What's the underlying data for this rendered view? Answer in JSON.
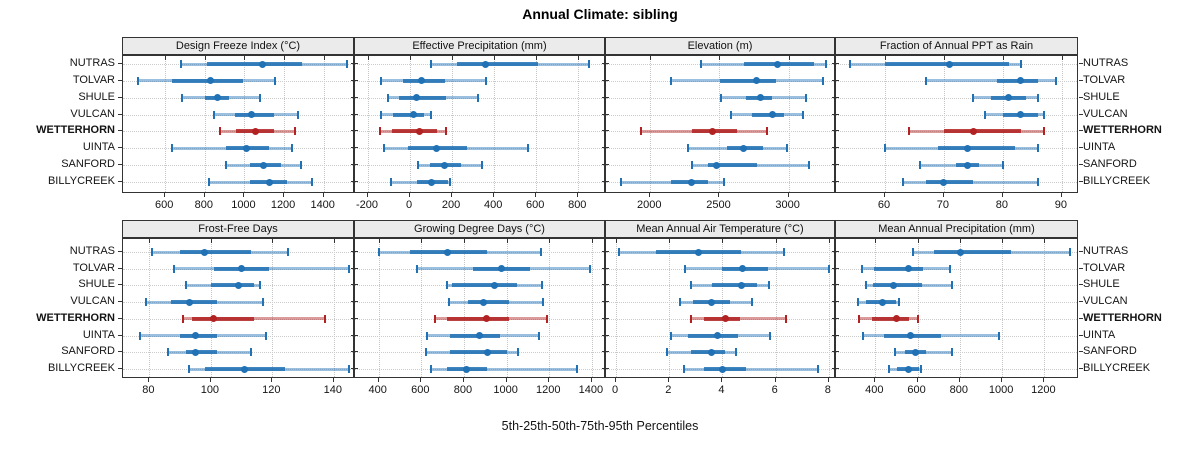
{
  "title": "Annual Climate: sibling",
  "footer": "5th-25th-50th-75th-95th Percentiles",
  "categories": [
    "NUTRAS",
    "TOLVAR",
    "SHULE",
    "VULCAN",
    "WETTERHORN",
    "UINTA",
    "SANFORD",
    "BILLYCREEK"
  ],
  "highlight": "WETTERHORN",
  "percentiles": [
    5,
    25,
    50,
    75,
    95
  ],
  "colors": {
    "blue": "#2171b5",
    "red": "#b22222",
    "grid": "#c6c6c6",
    "strip_bg": "#ebebeb",
    "border": "#333333"
  },
  "chart_data": [
    {
      "type": "errorbar-dotplot",
      "title": "Design Freeze Index (°C)",
      "row": 0,
      "col": 0,
      "xlim": [
        387,
        1558
      ],
      "ticks": [
        600,
        800,
        1000,
        1200,
        1400
      ],
      "grid": true,
      "series": [
        {
          "name": "NUTRAS",
          "values": [
            680,
            810,
            1090,
            1290,
            1520
          ]
        },
        {
          "name": "TOLVAR",
          "values": [
            465,
            635,
            830,
            995,
            1155
          ]
        },
        {
          "name": "SHULE",
          "values": [
            685,
            800,
            865,
            920,
            1080
          ]
        },
        {
          "name": "VULCAN",
          "values": [
            845,
            950,
            1035,
            1150,
            1270
          ]
        },
        {
          "name": "WETTERHORN",
          "values": [
            875,
            955,
            1055,
            1150,
            1255
          ]
        },
        {
          "name": "UINTA",
          "values": [
            635,
            905,
            1010,
            1125,
            1240
          ]
        },
        {
          "name": "SANFORD",
          "values": [
            905,
            1030,
            1095,
            1185,
            1285
          ]
        },
        {
          "name": "BILLYCREEK",
          "values": [
            820,
            1030,
            1125,
            1215,
            1340
          ]
        }
      ]
    },
    {
      "type": "errorbar-dotplot",
      "title": "Effective Precipitation (mm)",
      "row": 0,
      "col": 1,
      "xlim": [
        -262,
        932
      ],
      "ticks": [
        -200,
        0,
        200,
        400,
        600,
        800
      ],
      "grid": true,
      "series": [
        {
          "name": "NUTRAS",
          "values": [
            100,
            225,
            360,
            610,
            850
          ]
        },
        {
          "name": "TOLVAR",
          "values": [
            -140,
            -35,
            55,
            165,
            360
          ]
        },
        {
          "name": "SHULE",
          "values": [
            -105,
            -55,
            30,
            170,
            325
          ]
        },
        {
          "name": "VULCAN",
          "values": [
            -140,
            -80,
            15,
            65,
            100
          ]
        },
        {
          "name": "WETTERHORN",
          "values": [
            -145,
            -85,
            45,
            130,
            170
          ]
        },
        {
          "name": "UINTA",
          "values": [
            -125,
            -10,
            125,
            270,
            560
          ]
        },
        {
          "name": "SANFORD",
          "values": [
            40,
            95,
            165,
            240,
            340
          ]
        },
        {
          "name": "BILLYCREEK",
          "values": [
            -90,
            35,
            100,
            180,
            190
          ]
        }
      ]
    },
    {
      "type": "errorbar-dotplot",
      "title": "Elevation (m)",
      "row": 0,
      "col": 2,
      "xlim": [
        1680,
        3342
      ],
      "ticks": [
        2000,
        2500,
        3000
      ],
      "grid": true,
      "series": [
        {
          "name": "NUTRAS",
          "values": [
            2365,
            2675,
            2920,
            3180,
            3270
          ]
        },
        {
          "name": "TOLVAR",
          "values": [
            2150,
            2505,
            2765,
            2910,
            3250
          ]
        },
        {
          "name": "SHULE",
          "values": [
            2510,
            2690,
            2800,
            2880,
            3125
          ]
        },
        {
          "name": "VULCAN",
          "values": [
            2580,
            2735,
            2880,
            2965,
            3100
          ]
        },
        {
          "name": "WETTERHORN",
          "values": [
            1930,
            2300,
            2450,
            2630,
            2840
          ]
        },
        {
          "name": "UINTA",
          "values": [
            2270,
            2555,
            2675,
            2815,
            2990
          ]
        },
        {
          "name": "SANFORD",
          "values": [
            2305,
            2415,
            2480,
            2770,
            3150
          ]
        },
        {
          "name": "BILLYCREEK",
          "values": [
            1785,
            2150,
            2295,
            2420,
            2530
          ]
        }
      ]
    },
    {
      "type": "errorbar-dotplot",
      "title": "Fraction of Annual PPT as Rain",
      "row": 0,
      "col": 3,
      "xlim": [
        51.7,
        92.9
      ],
      "ticks": [
        60,
        70,
        80,
        90
      ],
      "grid": true,
      "series": [
        {
          "name": "NUTRAS",
          "values": [
            54,
            60,
            71,
            81,
            83
          ]
        },
        {
          "name": "TOLVAR",
          "values": [
            67,
            79,
            83,
            86,
            89
          ]
        },
        {
          "name": "SHULE",
          "values": [
            75,
            78,
            81,
            84,
            86
          ]
        },
        {
          "name": "VULCAN",
          "values": [
            77,
            80,
            83,
            86,
            87
          ]
        },
        {
          "name": "WETTERHORN",
          "values": [
            64,
            70,
            75,
            83,
            87
          ]
        },
        {
          "name": "UINTA",
          "values": [
            60,
            69,
            74,
            82,
            86
          ]
        },
        {
          "name": "SANFORD",
          "values": [
            66,
            72,
            74,
            76,
            80
          ]
        },
        {
          "name": "BILLYCREEK",
          "values": [
            63,
            67,
            70,
            75,
            86
          ]
        }
      ]
    },
    {
      "type": "errorbar-dotplot",
      "title": "Frost-Free Days",
      "row": 1,
      "col": 0,
      "xlim": [
        71.4,
        146.9
      ],
      "ticks": [
        80,
        100,
        120,
        140
      ],
      "grid": true,
      "series": [
        {
          "name": "NUTRAS",
          "values": [
            81,
            90,
            98,
            113,
            125
          ]
        },
        {
          "name": "TOLVAR",
          "values": [
            88,
            101,
            110,
            119,
            145
          ]
        },
        {
          "name": "SHULE",
          "values": [
            92,
            100,
            109,
            114,
            116
          ]
        },
        {
          "name": "VULCAN",
          "values": [
            79,
            87,
            93,
            102,
            117
          ]
        },
        {
          "name": "WETTERHORN",
          "values": [
            91,
            94,
            101,
            114,
            137
          ]
        },
        {
          "name": "UINTA",
          "values": [
            77,
            90,
            95,
            102,
            118
          ]
        },
        {
          "name": "SANFORD",
          "values": [
            86,
            92,
            95,
            102,
            113
          ]
        },
        {
          "name": "BILLYCREEK",
          "values": [
            93,
            98,
            111,
            124,
            145
          ]
        }
      ]
    },
    {
      "type": "errorbar-dotplot",
      "title": "Growing Degree Days (°C)",
      "row": 1,
      "col": 1,
      "xlim": [
        289,
        1466
      ],
      "ticks": [
        400,
        600,
        800,
        1000,
        1200,
        1400
      ],
      "grid": true,
      "series": [
        {
          "name": "NUTRAS",
          "values": [
            400,
            545,
            725,
            910,
            1160
          ]
        },
        {
          "name": "TOLVAR",
          "values": [
            580,
            840,
            975,
            1110,
            1390
          ]
        },
        {
          "name": "SHULE",
          "values": [
            720,
            745,
            945,
            1050,
            1165
          ]
        },
        {
          "name": "VULCAN",
          "values": [
            730,
            820,
            890,
            1010,
            1170
          ]
        },
        {
          "name": "WETTERHORN",
          "values": [
            665,
            720,
            905,
            1010,
            1190
          ]
        },
        {
          "name": "UINTA",
          "values": [
            625,
            735,
            875,
            970,
            1150
          ]
        },
        {
          "name": "SANFORD",
          "values": [
            620,
            735,
            910,
            1000,
            1055
          ]
        },
        {
          "name": "BILLYCREEK",
          "values": [
            645,
            720,
            810,
            910,
            1330
          ]
        }
      ]
    },
    {
      "type": "errorbar-dotplot",
      "title": "Mean Annual Air Temperature (°C)",
      "row": 1,
      "col": 2,
      "xlim": [
        -0.38,
        8.27
      ],
      "ticks": [
        0,
        2,
        4,
        6,
        8
      ],
      "grid": true,
      "series": [
        {
          "name": "NUTRAS",
          "values": [
            0.1,
            1.5,
            3.1,
            4.7,
            6.3
          ]
        },
        {
          "name": "TOLVAR",
          "values": [
            2.6,
            4.0,
            4.75,
            5.7,
            8.0
          ]
        },
        {
          "name": "SHULE",
          "values": [
            2.8,
            3.6,
            4.7,
            5.3,
            5.75
          ]
        },
        {
          "name": "VULCAN",
          "values": [
            2.4,
            2.9,
            3.6,
            4.3,
            5.1
          ]
        },
        {
          "name": "WETTERHORN",
          "values": [
            2.8,
            3.3,
            4.1,
            4.65,
            6.4
          ]
        },
        {
          "name": "UINTA",
          "values": [
            2.05,
            2.7,
            3.8,
            4.6,
            5.8
          ]
        },
        {
          "name": "SANFORD",
          "values": [
            1.9,
            2.8,
            3.6,
            4.1,
            4.5
          ]
        },
        {
          "name": "BILLYCREEK",
          "values": [
            2.55,
            3.3,
            4.0,
            4.9,
            7.6
          ]
        }
      ]
    },
    {
      "type": "errorbar-dotplot",
      "title": "Mean Annual Precipitation (mm)",
      "row": 1,
      "col": 3,
      "xlim": [
        214,
        1364
      ],
      "ticks": [
        400,
        600,
        800,
        1000,
        1200
      ],
      "grid": true,
      "series": [
        {
          "name": "NUTRAS",
          "values": [
            580,
            680,
            805,
            1040,
            1320
          ]
        },
        {
          "name": "TOLVAR",
          "values": [
            335,
            395,
            555,
            625,
            755
          ]
        },
        {
          "name": "SHULE",
          "values": [
            355,
            390,
            485,
            620,
            765
          ]
        },
        {
          "name": "VULCAN",
          "values": [
            320,
            355,
            435,
            500,
            510
          ]
        },
        {
          "name": "WETTERHORN",
          "values": [
            325,
            385,
            500,
            560,
            600
          ]
        },
        {
          "name": "UINTA",
          "values": [
            340,
            440,
            565,
            710,
            985
          ]
        },
        {
          "name": "SANFORD",
          "values": [
            495,
            540,
            590,
            640,
            765
          ]
        },
        {
          "name": "BILLYCREEK",
          "values": [
            465,
            505,
            555,
            605,
            615
          ]
        }
      ]
    }
  ]
}
